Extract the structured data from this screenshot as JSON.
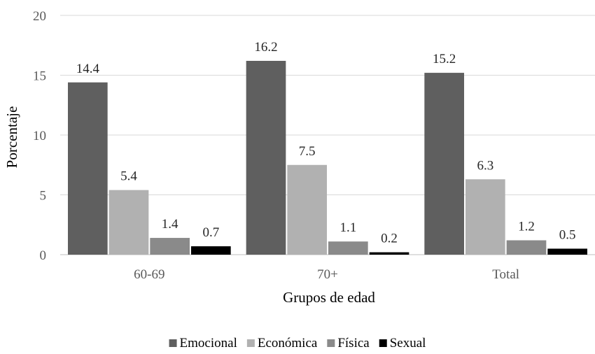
{
  "chart_data": {
    "type": "bar",
    "categories": [
      "60-69",
      "70+",
      "Total"
    ],
    "series": [
      {
        "name": "Emocional",
        "values": [
          14.4,
          16.2,
          15.2
        ],
        "color": "#5f5f5f"
      },
      {
        "name": "Económica",
        "values": [
          5.4,
          7.5,
          6.3
        ],
        "color": "#b1b1b1"
      },
      {
        "name": "Física",
        "values": [
          1.4,
          1.1,
          1.2
        ],
        "color": "#8a8a8a"
      },
      {
        "name": "Sexual",
        "values": [
          0.7,
          0.2,
          0.5
        ],
        "color": "#000000"
      }
    ],
    "xlabel": "Grupos de edad",
    "ylabel": "Porcentaje",
    "ylim": [
      0,
      20
    ],
    "yticks": [
      0,
      5,
      10,
      15,
      20
    ],
    "grid": true,
    "legend": "bottom",
    "data_labels": true
  }
}
